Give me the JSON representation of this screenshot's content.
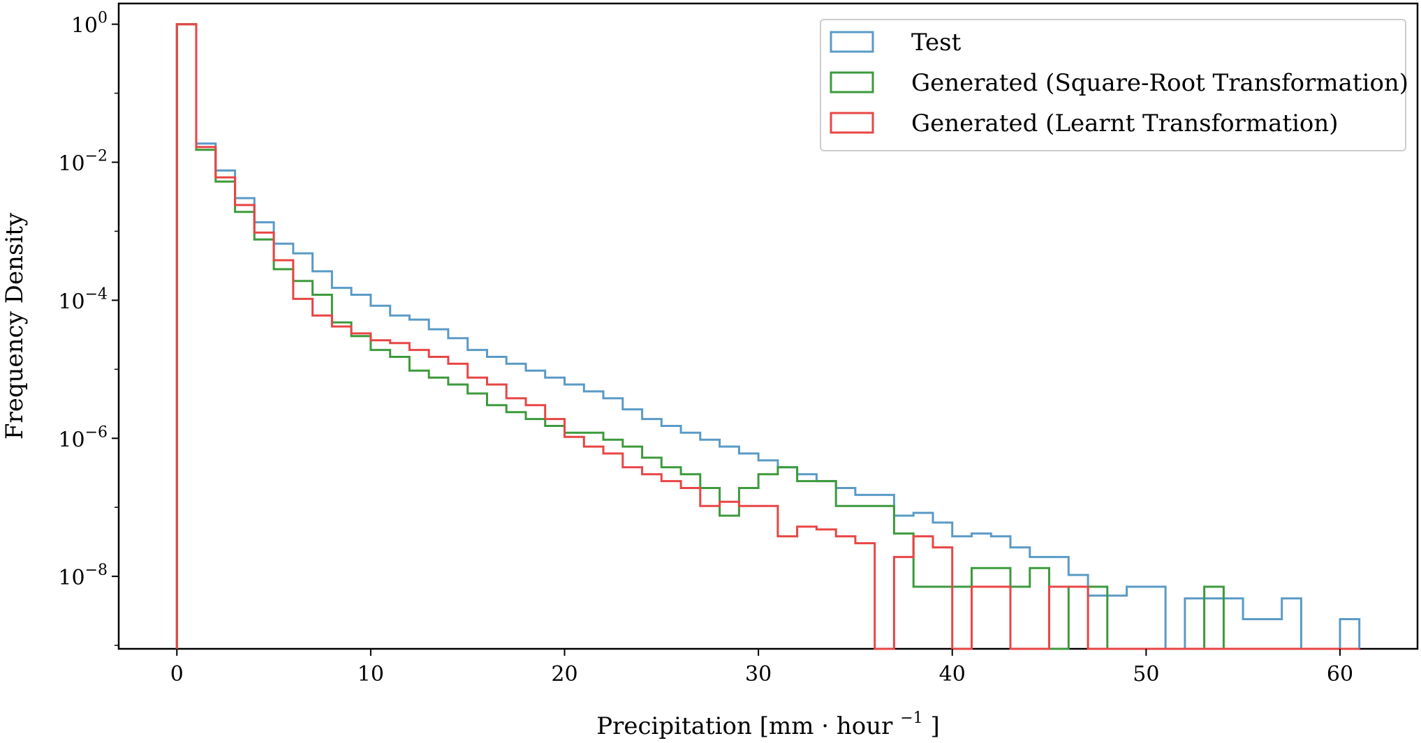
{
  "chart_data": {
    "type": "histogram-step",
    "xlabel": "Precipitation [mm",
    "xlabel_dot": "·",
    "xlabel_unit": "hour",
    "xlabel_exp": "−1",
    "xlabel_close": "]",
    "ylabel": "Frequency Density",
    "xlim": [
      -3,
      64
    ],
    "ylim_log10": [
      -9.05,
      0.3
    ],
    "y_scale": "log",
    "x_ticks": [
      {
        "value": 0,
        "label": "0"
      },
      {
        "value": 10,
        "label": "10"
      },
      {
        "value": 20,
        "label": "20"
      },
      {
        "value": 30,
        "label": "30"
      },
      {
        "value": 40,
        "label": "40"
      },
      {
        "value": 50,
        "label": "50"
      },
      {
        "value": 60,
        "label": "60"
      }
    ],
    "y_ticks": [
      {
        "exp": 0,
        "base": "10",
        "sup": "0"
      },
      {
        "exp": -2,
        "base": "10",
        "sup": "−2"
      },
      {
        "exp": -4,
        "base": "10",
        "sup": "−4"
      },
      {
        "exp": -6,
        "base": "10",
        "sup": "−6"
      },
      {
        "exp": -8,
        "base": "10",
        "sup": "−8"
      }
    ],
    "legend_position": "top-right",
    "grid": false,
    "bin_width": 1,
    "series": [
      {
        "name": "Test",
        "color": "#5a9ac6",
        "bins_log10": [
          0,
          -1.73,
          -2.12,
          -2.52,
          -2.87,
          -3.18,
          -3.32,
          -3.58,
          -3.82,
          -3.92,
          -4.08,
          -4.22,
          -4.28,
          -4.42,
          -4.55,
          -4.72,
          -4.82,
          -4.92,
          -5.02,
          -5.12,
          -5.22,
          -5.32,
          -5.42,
          -5.58,
          -5.72,
          -5.82,
          -5.92,
          -6.02,
          -6.12,
          -6.22,
          -6.32,
          -6.42,
          -6.52,
          -6.62,
          -6.72,
          -6.82,
          -6.82,
          -7.12,
          -7.08,
          -7.22,
          -7.42,
          -7.38,
          -7.42,
          -7.58,
          -7.52,
          -7.72,
          -7.98,
          -8.28,
          -8.28,
          -8.15,
          -8.15,
          null,
          -8.32,
          -8.32,
          -8.32,
          -8.62,
          -8.62,
          -8.32,
          null,
          null,
          -8.62
        ],
        "extra_bins": [
          [
            44,
            45,
            -7.72
          ]
        ]
      },
      {
        "name": "Generated (Square-Root Transformation)",
        "color": "#3c9a3c",
        "bins_log10": [
          0,
          -1.82,
          -2.28,
          -2.72,
          -3.12,
          -3.55,
          -3.72,
          -3.92,
          -4.32,
          -4.52,
          -4.72,
          -4.82,
          -5.02,
          -5.12,
          -5.22,
          -5.35,
          -5.52,
          -5.62,
          -5.72,
          -5.82,
          -5.92,
          -5.92,
          -6.02,
          -6.12,
          -6.28,
          -6.42,
          -6.52,
          -6.72,
          -7.12,
          -6.72,
          -6.52,
          -6.42,
          -6.62,
          -6.62,
          -6.98,
          -6.98,
          -6.98,
          -7.02,
          -8.15,
          -8.15,
          -8.15,
          -7.98,
          -8.15,
          -7.98,
          null,
          null,
          -8.15,
          -8.15,
          null,
          null,
          null,
          null,
          null,
          -8.15,
          null,
          null,
          null,
          null,
          null,
          null,
          null
        ],
        "extra_bins": [
          [
            37,
            38,
            -7.38
          ],
          [
            38,
            39,
            -8.15
          ],
          [
            40,
            41,
            -8.15
          ],
          [
            41,
            42,
            -7.88
          ],
          [
            42,
            43,
            -7.88
          ],
          [
            43,
            44,
            -8.15
          ],
          [
            44,
            45,
            -7.88
          ]
        ]
      },
      {
        "name": "Generated (Learnt Transformation)",
        "color": "#e84545",
        "bins_log10": [
          0,
          -1.78,
          -2.22,
          -2.62,
          -3.02,
          -3.42,
          -3.98,
          -4.22,
          -4.38,
          -4.48,
          -4.58,
          -4.62,
          -4.72,
          -4.82,
          -4.92,
          -5.12,
          -5.22,
          -5.42,
          -5.52,
          -5.72,
          -5.98,
          -6.12,
          -6.22,
          -6.42,
          -6.52,
          -6.62,
          -6.72,
          -6.98,
          -6.92,
          -6.98,
          -6.98,
          -7.42,
          -7.28,
          -7.32,
          -7.42,
          -7.52,
          null,
          null,
          -7.42,
          -7.42,
          null,
          null,
          -8.15,
          null,
          null,
          -8.15,
          -8.15,
          null,
          null,
          null,
          null,
          null,
          null,
          null,
          null,
          null,
          null,
          null,
          null,
          null,
          null
        ],
        "extra_bins": [
          [
            37,
            38,
            -7.72
          ],
          [
            38,
            39,
            -7.42
          ],
          [
            39,
            40,
            -7.58
          ],
          [
            41,
            42,
            -8.15
          ],
          [
            44,
            45,
            null
          ],
          [
            45,
            46,
            -8.15
          ]
        ]
      }
    ]
  }
}
